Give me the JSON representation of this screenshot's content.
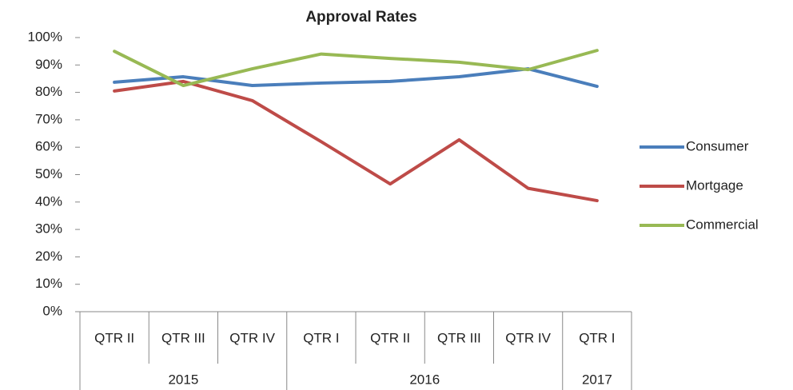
{
  "chart_data": {
    "type": "line",
    "title": "Approval Rates",
    "categories": [
      "QTR II",
      "QTR III",
      "QTR IV",
      "QTR I",
      "QTR II",
      "QTR III",
      "QTR IV",
      "QTR I"
    ],
    "groups": [
      {
        "label": "2015",
        "count": 3
      },
      {
        "label": "2016",
        "count": 4
      },
      {
        "label": "2017",
        "count": 1
      }
    ],
    "series": [
      {
        "name": "Consumer",
        "color": "#4a7ebb",
        "values": [
          83.7,
          85.7,
          82.5,
          83.4,
          84,
          85.7,
          88.6,
          82.2
        ]
      },
      {
        "name": "Mortgage",
        "color": "#be4b48",
        "values": [
          80.5,
          84,
          77,
          62,
          46.6,
          62.7,
          45,
          40.5
        ]
      },
      {
        "name": "Commercial",
        "color": "#98b954",
        "values": [
          95,
          82.5,
          88.6,
          94,
          92.4,
          91,
          88.3,
          95.3
        ]
      }
    ],
    "ylim": [
      0,
      100
    ],
    "yticks": [
      {
        "value": 0,
        "label": "0%"
      },
      {
        "value": 10,
        "label": "10%"
      },
      {
        "value": 20,
        "label": "20%"
      },
      {
        "value": 30,
        "label": "30%"
      },
      {
        "value": 40,
        "label": "40%"
      },
      {
        "value": 50,
        "label": "50%"
      },
      {
        "value": 60,
        "label": "60%"
      },
      {
        "value": 70,
        "label": "70%"
      },
      {
        "value": 80,
        "label": "80%"
      },
      {
        "value": 90,
        "label": "90%"
      },
      {
        "value": 100,
        "label": "100%"
      }
    ],
    "legend": "right"
  }
}
